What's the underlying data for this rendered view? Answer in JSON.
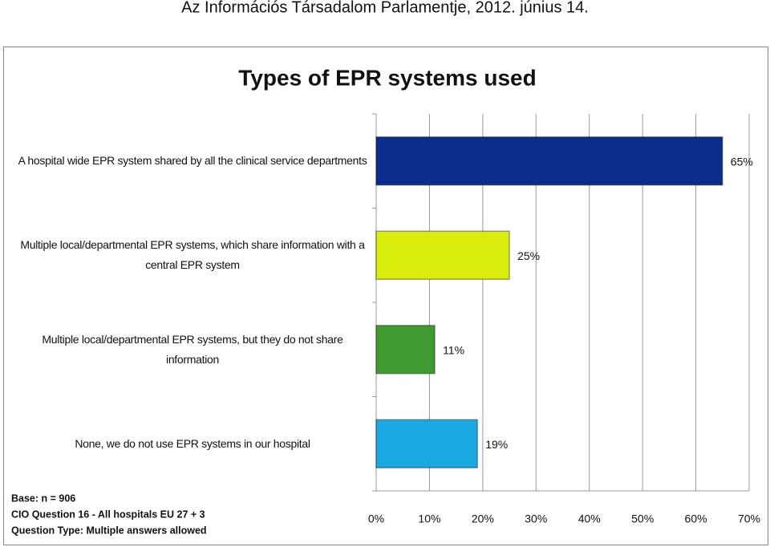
{
  "header": "Az Információs Társadalom Parlamentje, 2012. június 14.",
  "chart_data": {
    "type": "bar",
    "orientation": "horizontal",
    "title": "Types of EPR systems used",
    "categories": [
      "A hospital wide EPR system shared by all the clinical service departments",
      "Multiple local/departmental EPR systems, which share information with a central EPR system",
      "Multiple local/departmental EPR systems, but they do not share information",
      "None, we do not use EPR systems in our hospital"
    ],
    "values": [
      65,
      25,
      11,
      19
    ],
    "value_labels": [
      "65%",
      "25%",
      "11%",
      "19%"
    ],
    "colors": [
      "#0c2d8c",
      "#d9ec0c",
      "#3f9b2f",
      "#1ba9e4"
    ],
    "xlim": [
      0,
      70
    ],
    "xticks": [
      {
        "value": 0,
        "label": "0%"
      },
      {
        "value": 10,
        "label": "10%"
      },
      {
        "value": 20,
        "label": "20%"
      },
      {
        "value": 30,
        "label": "30%"
      },
      {
        "value": 40,
        "label": "40%"
      },
      {
        "value": 50,
        "label": "50%"
      },
      {
        "value": 60,
        "label": "60%"
      },
      {
        "value": 70,
        "label": "70%"
      }
    ],
    "grid": true,
    "notes": [
      "Base: n = 906",
      "CIO Question 16 - All hospitals  EU 27 + 3",
      "Question Type: Multiple answers allowed"
    ]
  }
}
